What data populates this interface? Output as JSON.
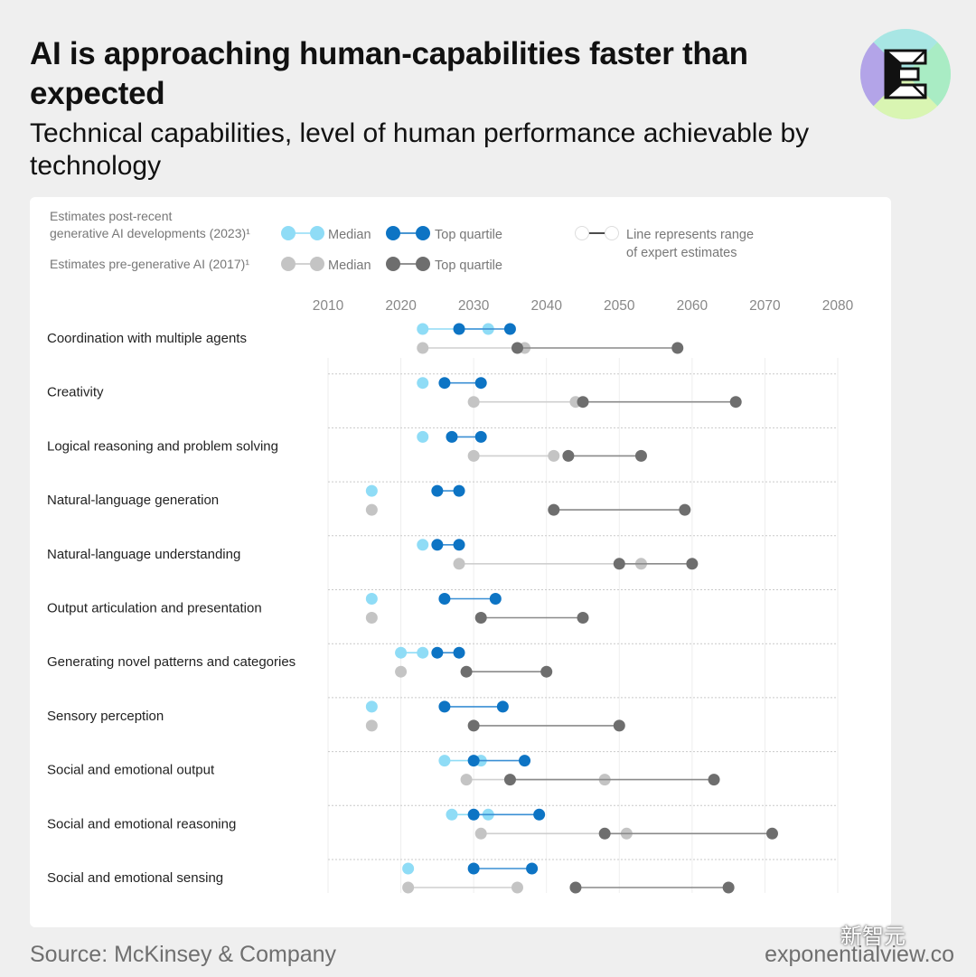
{
  "header": {
    "title": "AI is approaching human-capabilities faster than expected",
    "subtitle": "Technical capabilities, level of human performance achievable by technology"
  },
  "logo": {
    "icon": "exponential-view-e-logo-icon"
  },
  "footer": {
    "source": "Source: McKinsey & Company",
    "site": "exponentialview.co",
    "watermark": "新智元"
  },
  "colors": {
    "median_2023": "#8fdcf6",
    "top_2023": "#0d74c4",
    "median_2017": "#c4c4c4",
    "top_2017": "#6e6e6e",
    "line_2023_median": "#8fdcf6",
    "line_2023_top": "#3a8fd4",
    "line_2017_median": "#cfcfcf",
    "line_2017_top": "#8a8a8a"
  },
  "chart_data": {
    "type": "dumbbell",
    "legend": {
      "label_2023": "Estimates post-recent generative AI developments (2023)¹",
      "label_2017": "Estimates pre-generative AI (2017)¹",
      "median": "Median",
      "top_quartile": "Top quartile",
      "range_note": "Line represents range of expert estimates"
    },
    "x_ticks": [
      2010,
      2020,
      2030,
      2040,
      2050,
      2060,
      2070,
      2080
    ],
    "xlim": [
      2010,
      2080
    ],
    "rows": [
      {
        "label": "Coordination with multiple agents",
        "est2023": {
          "median": [
            2023,
            2032
          ],
          "top": [
            2028,
            2035
          ]
        },
        "est2017": {
          "median": [
            2023,
            2037
          ],
          "top": [
            2036,
            2058
          ]
        }
      },
      {
        "label": "Creativity",
        "est2023": {
          "median": [
            2023
          ],
          "top": [
            2026,
            2031
          ]
        },
        "est2017": {
          "median": [
            2030,
            2044
          ],
          "top": [
            2045,
            2066
          ]
        }
      },
      {
        "label": "Logical reasoning and problem solving",
        "est2023": {
          "median": [
            2023
          ],
          "top": [
            2027,
            2031
          ]
        },
        "est2017": {
          "median": [
            2030,
            2041
          ],
          "top": [
            2043,
            2053
          ]
        }
      },
      {
        "label": "Natural-language generation",
        "est2023": {
          "median": [
            2016
          ],
          "top": [
            2025,
            2028
          ]
        },
        "est2017": {
          "median": [
            2016
          ],
          "top": [
            2041,
            2059
          ]
        }
      },
      {
        "label": "Natural-language understanding",
        "est2023": {
          "median": [
            2023
          ],
          "top": [
            2025,
            2028
          ]
        },
        "est2017": {
          "median": [
            2028,
            2053
          ],
          "top": [
            2050,
            2060
          ]
        }
      },
      {
        "label": "Output articulation and presentation",
        "est2023": {
          "median": [
            2016
          ],
          "top": [
            2026,
            2033
          ]
        },
        "est2017": {
          "median": [
            2016
          ],
          "top": [
            2031,
            2045
          ]
        }
      },
      {
        "label": "Generating novel patterns and categories",
        "est2023": {
          "median": [
            2020,
            2023
          ],
          "top": [
            2025,
            2028
          ]
        },
        "est2017": {
          "median": [
            2020
          ],
          "top": [
            2029,
            2040
          ]
        }
      },
      {
        "label": "Sensory perception",
        "est2023": {
          "median": [
            2016
          ],
          "top": [
            2026,
            2034
          ]
        },
        "est2017": {
          "median": [
            2016
          ],
          "top": [
            2030,
            2050
          ]
        }
      },
      {
        "label": "Social and emotional output",
        "est2023": {
          "median": [
            2026,
            2031
          ],
          "top": [
            2030,
            2037
          ]
        },
        "est2017": {
          "median": [
            2029,
            2048
          ],
          "top": [
            2035,
            2063
          ]
        }
      },
      {
        "label": "Social and emotional reasoning",
        "est2023": {
          "median": [
            2027,
            2032
          ],
          "top": [
            2030,
            2039
          ]
        },
        "est2017": {
          "median": [
            2031,
            2051
          ],
          "top": [
            2048,
            2071
          ]
        }
      },
      {
        "label": "Social and emotional sensing",
        "est2023": {
          "median": [
            2021
          ],
          "top": [
            2030,
            2038
          ]
        },
        "est2017": {
          "median": [
            2021,
            2036
          ],
          "top": [
            2044,
            2065
          ]
        }
      }
    ]
  }
}
